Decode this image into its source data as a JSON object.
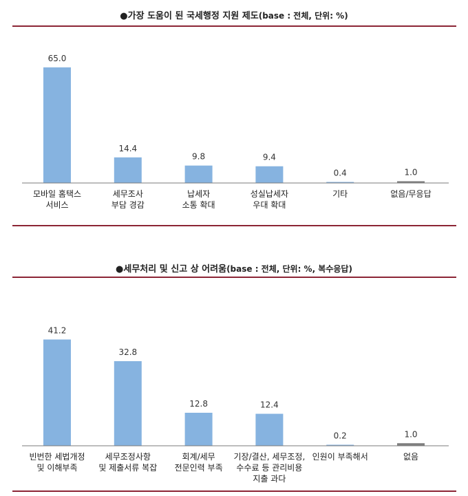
{
  "chart_data": [
    {
      "type": "bar",
      "title": "●가장 도움이 된 국세행정 지원 제도",
      "subtitle": "(base : 전체, 단위: %)",
      "categories": [
        [
          "모바일 홈택스",
          "서비스"
        ],
        [
          "세무조사",
          "부담 경감"
        ],
        [
          "납세자",
          "소통 확대"
        ],
        [
          "성실납세자",
          "우대 확대"
        ],
        [
          "기타"
        ],
        [
          "없음/무응답"
        ]
      ],
      "values": [
        65.0,
        14.4,
        9.8,
        9.4,
        0.4,
        1.0
      ],
      "value_labels": [
        "65.0",
        "14.4",
        "9.8",
        "9.4",
        "0.4",
        "1.0"
      ],
      "bar_colors": [
        "#86b3e0",
        "#86b3e0",
        "#86b3e0",
        "#86b3e0",
        "#86b3e0",
        "#7f7f7f"
      ],
      "ylim": [
        0,
        70
      ],
      "grid": false,
      "legend": "none"
    },
    {
      "type": "bar",
      "title": "●세무처리 및 신고 상 어려움",
      "subtitle": "(base : 전체, 단위: %, 복수응답)",
      "categories": [
        [
          "빈번한 세법개정",
          "및 이해부족"
        ],
        [
          "세무조정사항",
          "및 제출서류 복잡"
        ],
        [
          "회계/세무",
          "전문인력 부족"
        ],
        [
          "기장/결산, 세무조정,",
          "수수료 등 관리비용",
          "지출 과다"
        ],
        [
          "인원이 부족해서"
        ],
        [
          "없음"
        ]
      ],
      "values": [
        41.2,
        32.8,
        12.8,
        12.4,
        0.2,
        1.0
      ],
      "value_labels": [
        "41.2",
        "32.8",
        "12.8",
        "12.4",
        "0.2",
        "1.0"
      ],
      "bar_colors": [
        "#86b3e0",
        "#86b3e0",
        "#86b3e0",
        "#86b3e0",
        "#86b3e0",
        "#7f7f7f"
      ],
      "ylim": [
        0,
        44
      ],
      "grid": false,
      "legend": "none"
    }
  ]
}
